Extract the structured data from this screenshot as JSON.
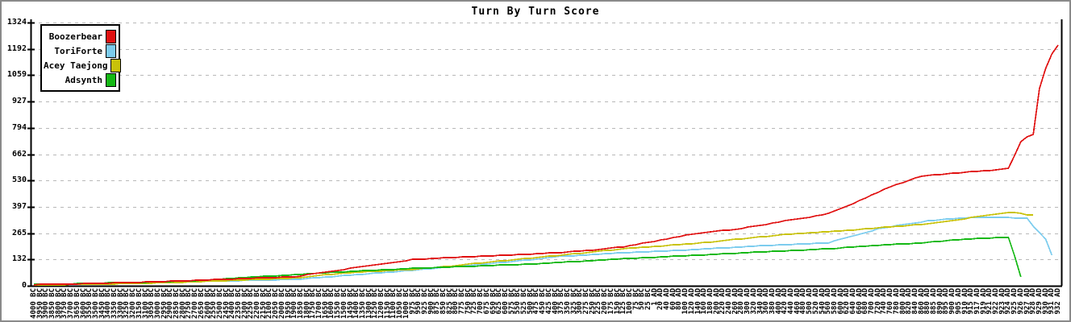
{
  "window": {
    "title": "Turn By Turn Score"
  },
  "chart_data": {
    "type": "line",
    "title": "Turn By Turn Score",
    "xlabel": "",
    "ylabel": "",
    "ylim": [
      0,
      1324
    ],
    "y_ticks": [
      0,
      132,
      265,
      397,
      530,
      662,
      794,
      927,
      1059,
      1192,
      1324
    ],
    "grid": "horizontal-dashed",
    "grid_color": "#b8b8b8",
    "axis_color": "#000000",
    "legend_position": "top-left",
    "x_labels": [
      "4000 BC",
      "3950 BC",
      "3900 BC",
      "3850 BC",
      "3800 BC",
      "3750 BC",
      "3700 BC",
      "3650 BC",
      "3600 BC",
      "3550 BC",
      "3500 BC",
      "3450 BC",
      "3400 BC",
      "3350 BC",
      "3300 BC",
      "3250 BC",
      "3200 BC",
      "3150 BC",
      "3100 BC",
      "3050 BC",
      "3000 BC",
      "2950 BC",
      "2900 BC",
      "2850 BC",
      "2800 BC",
      "2750 BC",
      "2700 BC",
      "2650 BC",
      "2600 BC",
      "2550 BC",
      "2500 BC",
      "2450 BC",
      "2400 BC",
      "2350 BC",
      "2300 BC",
      "2250 BC",
      "2200 BC",
      "2150 BC",
      "2100 BC",
      "2050 BC",
      "2000 BC",
      "1950 BC",
      "1900 BC",
      "1850 BC",
      "1800 BC",
      "1750 BC",
      "1700 BC",
      "1650 BC",
      "1600 BC",
      "1550 BC",
      "1500 BC",
      "1450 BC",
      "1400 BC",
      "1350 BC",
      "1300 BC",
      "1250 BC",
      "1200 BC",
      "1150 BC",
      "1100 BC",
      "1050 BC",
      "1000 BC",
      "975 BC",
      "950 BC",
      "925 BC",
      "900 BC",
      "875 BC",
      "850 BC",
      "825 BC",
      "800 BC",
      "775 BC",
      "750 BC",
      "725 BC",
      "700 BC",
      "675 BC",
      "650 BC",
      "625 BC",
      "600 BC",
      "575 BC",
      "550 BC",
      "525 BC",
      "500 BC",
      "475 BC",
      "450 BC",
      "425 BC",
      "400 BC",
      "375 BC",
      "350 BC",
      "325 BC",
      "300 BC",
      "275 BC",
      "250 BC",
      "225 BC",
      "200 BC",
      "175 BC",
      "150 BC",
      "125 BC",
      "100 BC",
      "75 BC",
      "50 BC",
      "25 BC",
      "1 AD",
      "20 AD",
      "40 AD",
      "60 AD",
      "80 AD",
      "100 AD",
      "120 AD",
      "140 AD",
      "160 AD",
      "180 AD",
      "200 AD",
      "220 AD",
      "240 AD",
      "260 AD",
      "280 AD",
      "300 AD",
      "320 AD",
      "340 AD",
      "360 AD",
      "380 AD",
      "400 AD",
      "420 AD",
      "440 AD",
      "460 AD",
      "480 AD",
      "500 AD",
      "520 AD",
      "540 AD",
      "560 AD",
      "580 AD",
      "600 AD",
      "620 AD",
      "640 AD",
      "660 AD",
      "680 AD",
      "700 AD",
      "720 AD",
      "740 AD",
      "760 AD",
      "780 AD",
      "800 AD",
      "820 AD",
      "840 AD",
      "860 AD",
      "880 AD",
      "885 AD",
      "890 AD",
      "895 AD",
      "900 AD",
      "905 AD",
      "910 AD",
      "915 AD",
      "917 AD",
      "919 AD",
      "921 AD",
      "922 AD",
      "923 AD",
      "924 AD",
      "925 AD",
      "926 AD",
      "927 AD",
      "928 AD",
      "929 AD",
      "930 AD",
      "931 AD",
      "932 AD"
    ],
    "series": [
      {
        "name": "Boozerbear",
        "color": "#e01010",
        "points": [
          [
            0,
            6
          ],
          [
            5,
            8
          ],
          [
            10,
            12
          ],
          [
            15,
            16
          ],
          [
            21,
            22
          ],
          [
            26,
            27
          ],
          [
            31,
            33
          ],
          [
            36,
            39
          ],
          [
            42,
            46
          ],
          [
            47,
            68
          ],
          [
            52,
            92
          ],
          [
            57,
            113
          ],
          [
            61,
            132
          ],
          [
            66,
            140
          ],
          [
            73,
            150
          ],
          [
            79,
            158
          ],
          [
            85,
            167
          ],
          [
            90,
            180
          ],
          [
            95,
            196
          ],
          [
            101,
            230
          ],
          [
            107,
            265
          ],
          [
            112,
            281
          ],
          [
            117,
            302
          ],
          [
            122,
            332
          ],
          [
            125,
            345
          ],
          [
            128,
            363
          ],
          [
            131,
            400
          ],
          [
            134,
            443
          ],
          [
            138,
            500
          ],
          [
            141,
            530
          ],
          [
            143,
            552
          ],
          [
            147,
            563
          ],
          [
            152,
            576
          ],
          [
            155,
            583
          ],
          [
            157,
            591
          ],
          [
            158,
            655
          ],
          [
            159,
            726
          ],
          [
            160,
            750
          ],
          [
            161,
            763
          ],
          [
            162,
            990
          ],
          [
            163,
            1095
          ],
          [
            164,
            1168
          ],
          [
            165,
            1210
          ]
        ]
      },
      {
        "name": "ToriForte",
        "color": "#7cccee",
        "points": [
          [
            0,
            5
          ],
          [
            5,
            6
          ],
          [
            10,
            9
          ],
          [
            15,
            13
          ],
          [
            21,
            17
          ],
          [
            26,
            21
          ],
          [
            31,
            25
          ],
          [
            36,
            28
          ],
          [
            42,
            32
          ],
          [
            47,
            43
          ],
          [
            52,
            56
          ],
          [
            57,
            68
          ],
          [
            61,
            78
          ],
          [
            66,
            92
          ],
          [
            73,
            110
          ],
          [
            79,
            128
          ],
          [
            85,
            148
          ],
          [
            90,
            157
          ],
          [
            95,
            166
          ],
          [
            101,
            174
          ],
          [
            107,
            183
          ],
          [
            112,
            192
          ],
          [
            117,
            201
          ],
          [
            122,
            208
          ],
          [
            128,
            216
          ],
          [
            130,
            236
          ],
          [
            133,
            259
          ],
          [
            136,
            286
          ],
          [
            140,
            308
          ],
          [
            144,
            326
          ],
          [
            148,
            338
          ],
          [
            152,
            345
          ],
          [
            156,
            343
          ],
          [
            159,
            341
          ],
          [
            160,
            340
          ],
          [
            161,
            299
          ],
          [
            162,
            268
          ],
          [
            163,
            233
          ],
          [
            164,
            155
          ]
        ]
      },
      {
        "name": "Acey Taejong",
        "color": "#c8c20a",
        "points": [
          [
            0,
            5
          ],
          [
            5,
            6
          ],
          [
            10,
            8
          ],
          [
            15,
            11
          ],
          [
            21,
            15
          ],
          [
            26,
            20
          ],
          [
            31,
            26
          ],
          [
            36,
            32
          ],
          [
            42,
            39
          ],
          [
            47,
            55
          ],
          [
            52,
            68
          ],
          [
            57,
            76
          ],
          [
            61,
            82
          ],
          [
            66,
            96
          ],
          [
            73,
            118
          ],
          [
            79,
            136
          ],
          [
            85,
            154
          ],
          [
            90,
            170
          ],
          [
            95,
            186
          ],
          [
            101,
            200
          ],
          [
            107,
            214
          ],
          [
            112,
            230
          ],
          [
            117,
            246
          ],
          [
            122,
            260
          ],
          [
            128,
            272
          ],
          [
            133,
            283
          ],
          [
            137,
            295
          ],
          [
            141,
            303
          ],
          [
            144,
            312
          ],
          [
            148,
            326
          ],
          [
            152,
            350
          ],
          [
            155,
            362
          ],
          [
            157,
            370
          ],
          [
            158,
            368
          ],
          [
            159,
            363
          ],
          [
            160,
            358
          ],
          [
            161,
            355
          ]
        ]
      },
      {
        "name": "Adsynth",
        "color": "#14b814",
        "points": [
          [
            0,
            7
          ],
          [
            5,
            9
          ],
          [
            10,
            13
          ],
          [
            15,
            16
          ],
          [
            21,
            20
          ],
          [
            26,
            26
          ],
          [
            31,
            35
          ],
          [
            36,
            45
          ],
          [
            42,
            55
          ],
          [
            47,
            66
          ],
          [
            52,
            74
          ],
          [
            57,
            81
          ],
          [
            61,
            88
          ],
          [
            66,
            93
          ],
          [
            73,
            101
          ],
          [
            79,
            108
          ],
          [
            85,
            118
          ],
          [
            90,
            127
          ],
          [
            95,
            136
          ],
          [
            101,
            145
          ],
          [
            107,
            154
          ],
          [
            112,
            162
          ],
          [
            117,
            170
          ],
          [
            122,
            177
          ],
          [
            128,
            186
          ],
          [
            133,
            197
          ],
          [
            137,
            206
          ],
          [
            141,
            212
          ],
          [
            144,
            218
          ],
          [
            148,
            229
          ],
          [
            150,
            235
          ],
          [
            153,
            240
          ],
          [
            157,
            242
          ],
          [
            158,
            150
          ],
          [
            159,
            46
          ]
        ]
      }
    ]
  }
}
